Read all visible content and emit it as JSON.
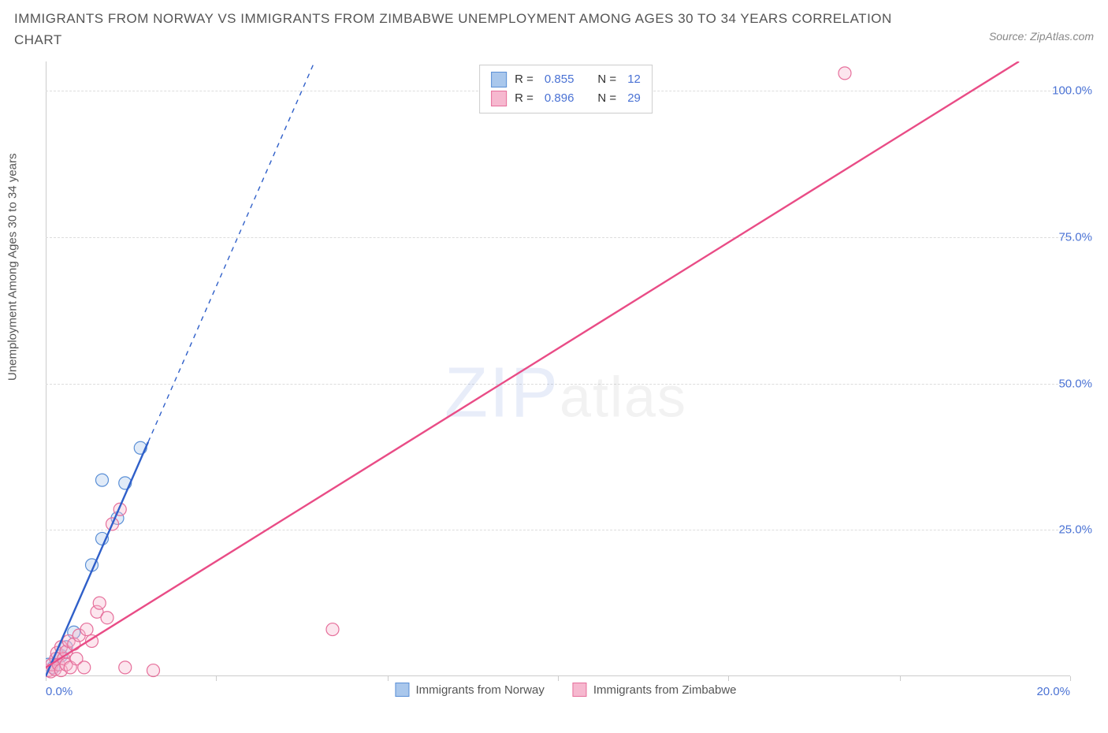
{
  "title": "IMMIGRANTS FROM NORWAY VS IMMIGRANTS FROM ZIMBABWE UNEMPLOYMENT AMONG AGES 30 TO 34 YEARS CORRELATION CHART",
  "source": "Source: ZipAtlas.com",
  "y_axis_label": "Unemployment Among Ages 30 to 34 years",
  "watermark_zip": "ZIP",
  "watermark_atlas": "atlas",
  "chart": {
    "type": "scatter",
    "background_color": "#ffffff",
    "grid_color": "#dddddd",
    "axis_color": "#cccccc",
    "tick_label_color": "#4a72d4",
    "xlim": [
      0,
      20
    ],
    "ylim": [
      0,
      105
    ],
    "x_ticks": [
      0,
      3.33,
      6.67,
      10,
      13.33,
      16.67,
      20
    ],
    "x_tick_labels_shown": {
      "0": "0.0%",
      "20": "20.0%"
    },
    "y_ticks": [
      25,
      50,
      75,
      100
    ],
    "y_tick_labels": {
      "25": "25.0%",
      "50": "50.0%",
      "75": "75.0%",
      "100": "100.0%"
    },
    "marker_radius": 8,
    "marker_fill_opacity": 0.35,
    "marker_stroke_width": 1.2,
    "trend_line_width": 2.4,
    "trend_dash_width": 1.4
  },
  "series": [
    {
      "name": "Immigrants from Norway",
      "color_stroke": "#5a8fd6",
      "color_fill": "#a9c7ec",
      "line_color": "#2f5fc9",
      "R": "0.855",
      "N": "12",
      "points": [
        {
          "x": 0.05,
          "y": 2.0
        },
        {
          "x": 0.15,
          "y": 1.5
        },
        {
          "x": 0.2,
          "y": 3.0
        },
        {
          "x": 0.3,
          "y": 3.5
        },
        {
          "x": 0.4,
          "y": 5.0
        },
        {
          "x": 0.55,
          "y": 7.5
        },
        {
          "x": 0.9,
          "y": 19.0
        },
        {
          "x": 1.1,
          "y": 23.5
        },
        {
          "x": 1.4,
          "y": 27.0
        },
        {
          "x": 1.1,
          "y": 33.5
        },
        {
          "x": 1.55,
          "y": 33.0
        },
        {
          "x": 1.85,
          "y": 39.0
        }
      ],
      "trend": {
        "x1": 0.0,
        "y1": 0.0,
        "x2": 2.0,
        "y2": 40.0,
        "dash_to_x": 5.3,
        "dash_to_y": 106.0
      }
    },
    {
      "name": "Immigrants from Zimbabwe",
      "color_stroke": "#e66f9b",
      "color_fill": "#f6b8cf",
      "line_color": "#e94c86",
      "R": "0.896",
      "N": "29",
      "points": [
        {
          "x": 0.05,
          "y": 1.0
        },
        {
          "x": 0.1,
          "y": 0.8
        },
        {
          "x": 0.12,
          "y": 2.0
        },
        {
          "x": 0.18,
          "y": 1.2
        },
        {
          "x": 0.2,
          "y": 3.0
        },
        {
          "x": 0.22,
          "y": 4.0
        },
        {
          "x": 0.25,
          "y": 2.0
        },
        {
          "x": 0.3,
          "y": 1.0
        },
        {
          "x": 0.3,
          "y": 5.0
        },
        {
          "x": 0.35,
          "y": 3.0
        },
        {
          "x": 0.4,
          "y": 4.2
        },
        {
          "x": 0.4,
          "y": 2.0
        },
        {
          "x": 0.45,
          "y": 6.0
        },
        {
          "x": 0.48,
          "y": 1.5
        },
        {
          "x": 0.55,
          "y": 5.5
        },
        {
          "x": 0.6,
          "y": 3.0
        },
        {
          "x": 0.65,
          "y": 7.0
        },
        {
          "x": 0.75,
          "y": 1.5
        },
        {
          "x": 0.8,
          "y": 8.0
        },
        {
          "x": 0.9,
          "y": 6.0
        },
        {
          "x": 1.0,
          "y": 11.0
        },
        {
          "x": 1.05,
          "y": 12.5
        },
        {
          "x": 1.2,
          "y": 10.0
        },
        {
          "x": 1.55,
          "y": 1.5
        },
        {
          "x": 1.3,
          "y": 26.0
        },
        {
          "x": 1.45,
          "y": 28.5
        },
        {
          "x": 2.1,
          "y": 1.0
        },
        {
          "x": 5.6,
          "y": 8.0
        },
        {
          "x": 15.6,
          "y": 103.0
        }
      ],
      "trend": {
        "x1": 0.0,
        "y1": 1.5,
        "x2": 19.0,
        "y2": 105.0
      }
    }
  ],
  "stats_legend": {
    "rows": [
      {
        "swatch_fill": "#a9c7ec",
        "swatch_stroke": "#5a8fd6",
        "R_label": "R =",
        "R_val": "0.855",
        "N_label": "N =",
        "N_val": "12"
      },
      {
        "swatch_fill": "#f6b8cf",
        "swatch_stroke": "#e66f9b",
        "R_label": "R =",
        "R_val": "0.896",
        "N_label": "N =",
        "N_val": "29"
      }
    ]
  },
  "bottom_legend": [
    {
      "swatch_fill": "#a9c7ec",
      "swatch_stroke": "#5a8fd6",
      "label": "Immigrants from Norway"
    },
    {
      "swatch_fill": "#f6b8cf",
      "swatch_stroke": "#e66f9b",
      "label": "Immigrants from Zimbabwe"
    }
  ]
}
